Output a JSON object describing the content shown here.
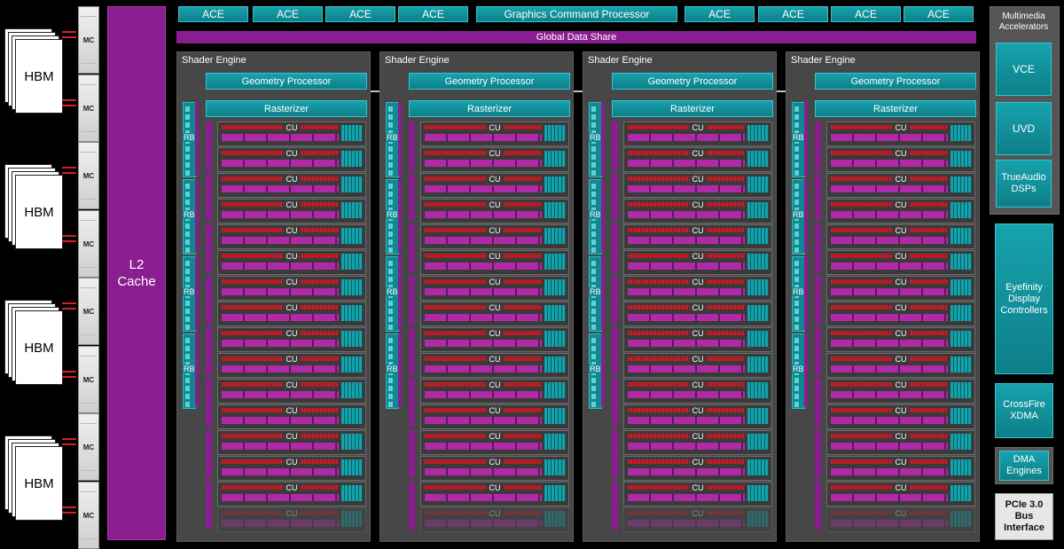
{
  "hbm": {
    "label": "HBM",
    "mc_label": "MC"
  },
  "l2": {
    "label": "L2\nCache"
  },
  "front_end": {
    "ace_label": "ACE",
    "gcp_label": "Graphics Command Processor",
    "gds_label": "Global Data Share"
  },
  "shader_engine": {
    "title": "Shader Engine",
    "geometry_label": "Geometry Processor",
    "rasterizer_label": "Rasterizer",
    "rb_label": "RB",
    "cu_label": "CU"
  },
  "multimedia": {
    "title": "Multimedia\nAccelerators",
    "blocks": [
      "VCE",
      "UVD",
      "TrueAudio\nDSPs"
    ]
  },
  "io": {
    "eyefinity": "Eyefinity\nDisplay\nControllers",
    "crossfire": "CrossFire\nXDMA",
    "dma": "DMA\nEngines",
    "pcie": "PCIe 3.0\nBus\nInterface"
  },
  "colors": {
    "teal": "#17a2ad",
    "purple": "#8a1d8f",
    "red": "#c6202b"
  }
}
